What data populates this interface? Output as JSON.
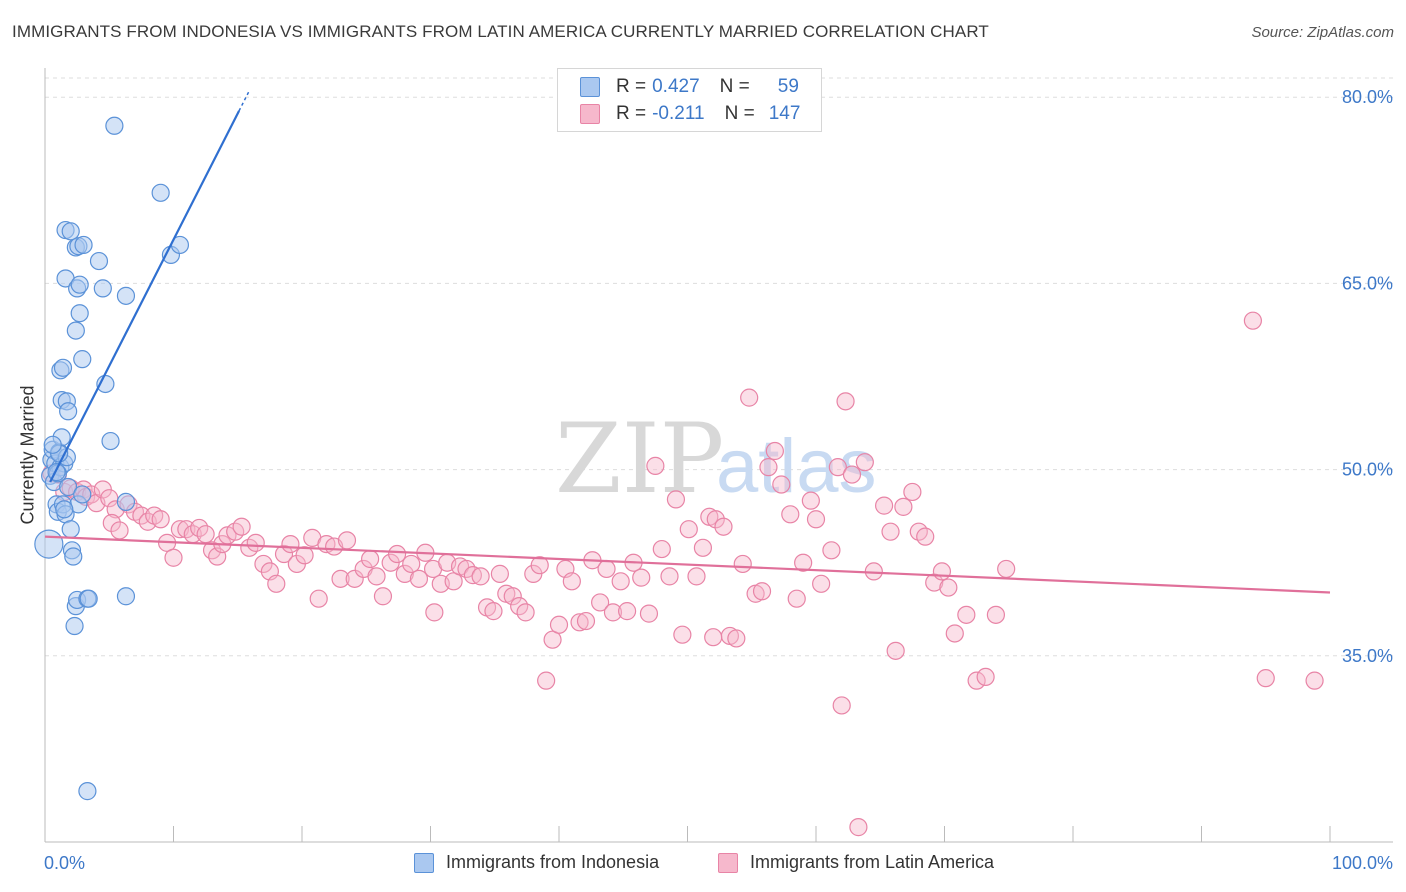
{
  "title": "IMMIGRANTS FROM INDONESIA VS IMMIGRANTS FROM LATIN AMERICA CURRENTLY MARRIED CORRELATION CHART",
  "source": "Source: ZipAtlas.com",
  "watermark": {
    "zip": "ZIP",
    "atlas": "atlas"
  },
  "legend": {
    "rows": [
      {
        "r_label": "R =",
        "r_value": "0.427",
        "n_label": "N =",
        "n_value": "59"
      },
      {
        "r_label": "R =",
        "r_value": "-0.211",
        "n_label": "N =",
        "n_value": "147"
      }
    ]
  },
  "bottom_legend": {
    "series1": "Immigrants from Indonesia",
    "series2": "Immigrants from Latin America"
  },
  "colors": {
    "indonesia_fill": "#aac8f0",
    "indonesia_stroke": "#5b92d8",
    "indonesia_line": "#2f6fd0",
    "latin_fill": "#f6b8cc",
    "latin_stroke": "#e884a6",
    "latin_line": "#e0709a",
    "tick_text": "#3d78c8",
    "grid": "#dddddd"
  },
  "chart_data": {
    "type": "scatter",
    "title": "IMMIGRANTS FROM INDONESIA VS IMMIGRANTS FROM LATIN AMERICA CURRENTLY MARRIED CORRELATION CHART",
    "xlabel": "",
    "ylabel": "Currently Married",
    "xlim": [
      0,
      100
    ],
    "ylim": [
      20,
      83
    ],
    "x_ticks": [
      "0.0%",
      "100.0%"
    ],
    "y_ticks": [
      {
        "value": 35,
        "label": "35.0%"
      },
      {
        "value": 50,
        "label": "50.0%"
      },
      {
        "value": 65,
        "label": "65.0%"
      },
      {
        "value": 80,
        "label": "80.0%"
      }
    ],
    "grid": true,
    "legend_position": "top-center",
    "series": [
      {
        "name": "Immigrants from Indonesia",
        "r": 0.427,
        "n": 59,
        "trend": {
          "x": [
            0.4,
            15.1
          ],
          "y": [
            49.0,
            78.9
          ]
        },
        "points": [
          [
            0.3,
            44.0
          ],
          [
            0.4,
            49.5
          ],
          [
            0.5,
            50.8
          ],
          [
            0.6,
            51.6
          ],
          [
            0.7,
            49.0
          ],
          [
            0.8,
            50.5
          ],
          [
            0.9,
            47.2
          ],
          [
            1.0,
            46.6
          ],
          [
            1.1,
            51.4
          ],
          [
            1.2,
            50.2
          ],
          [
            1.3,
            52.6
          ],
          [
            1.4,
            47.2
          ],
          [
            1.5,
            50.5
          ],
          [
            1.6,
            46.4
          ],
          [
            1.7,
            51.0
          ],
          [
            1.8,
            48.6
          ],
          [
            2.0,
            45.2
          ],
          [
            2.1,
            43.5
          ],
          [
            2.2,
            43.0
          ],
          [
            2.3,
            37.4
          ],
          [
            2.4,
            39.0
          ],
          [
            2.5,
            39.5
          ],
          [
            2.6,
            47.2
          ],
          [
            2.9,
            48.0
          ],
          [
            3.3,
            39.6
          ],
          [
            3.4,
            39.6
          ],
          [
            1.2,
            58.0
          ],
          [
            1.4,
            58.2
          ],
          [
            1.3,
            55.6
          ],
          [
            1.7,
            55.5
          ],
          [
            1.8,
            54.7
          ],
          [
            2.4,
            61.2
          ],
          [
            2.4,
            67.9
          ],
          [
            1.6,
            69.3
          ],
          [
            2.0,
            69.2
          ],
          [
            1.6,
            65.4
          ],
          [
            2.6,
            68.0
          ],
          [
            2.7,
            62.6
          ],
          [
            2.9,
            58.9
          ],
          [
            2.5,
            64.6
          ],
          [
            2.7,
            64.9
          ],
          [
            3.0,
            68.1
          ],
          [
            4.2,
            66.8
          ],
          [
            4.5,
            64.6
          ],
          [
            4.7,
            56.9
          ],
          [
            5.1,
            52.3
          ],
          [
            5.4,
            77.7
          ],
          [
            6.3,
            47.4
          ],
          [
            6.3,
            64.0
          ],
          [
            6.3,
            39.8
          ],
          [
            9.0,
            72.3
          ],
          [
            9.8,
            67.3
          ],
          [
            10.5,
            68.1
          ],
          [
            3.3,
            24.1
          ],
          [
            1.0,
            49.7
          ],
          [
            1.1,
            51.3
          ],
          [
            1.5,
            46.8
          ],
          [
            0.9,
            49.8
          ],
          [
            0.6,
            52.0
          ]
        ]
      },
      {
        "name": "Immigrants from Latin America",
        "r": -0.211,
        "n": 147,
        "trend": {
          "x": [
            0,
            100
          ],
          "y": [
            44.6,
            40.1
          ]
        },
        "points": [
          [
            0.5,
            49.7
          ],
          [
            1.0,
            49.6
          ],
          [
            1.5,
            48.2
          ],
          [
            2.0,
            48.5
          ],
          [
            2.5,
            48.2
          ],
          [
            3.0,
            48.4
          ],
          [
            3.2,
            47.8
          ],
          [
            3.6,
            48.0
          ],
          [
            4.0,
            47.3
          ],
          [
            4.5,
            48.4
          ],
          [
            5.0,
            47.7
          ],
          [
            5.5,
            46.8
          ],
          [
            5.2,
            45.7
          ],
          [
            5.8,
            45.1
          ],
          [
            6.5,
            47.2
          ],
          [
            7.0,
            46.6
          ],
          [
            7.5,
            46.3
          ],
          [
            8.0,
            45.8
          ],
          [
            8.5,
            46.3
          ],
          [
            9.0,
            46.0
          ],
          [
            9.5,
            44.1
          ],
          [
            10.0,
            42.9
          ],
          [
            10.5,
            45.2
          ],
          [
            11.0,
            45.2
          ],
          [
            11.5,
            44.8
          ],
          [
            12.0,
            45.3
          ],
          [
            12.5,
            44.8
          ],
          [
            13.0,
            43.5
          ],
          [
            13.4,
            43.0
          ],
          [
            13.8,
            44.0
          ],
          [
            14.2,
            44.7
          ],
          [
            14.8,
            45.0
          ],
          [
            15.3,
            45.4
          ],
          [
            15.9,
            43.7
          ],
          [
            16.4,
            44.1
          ],
          [
            17.0,
            42.4
          ],
          [
            17.5,
            41.8
          ],
          [
            18.0,
            40.8
          ],
          [
            18.6,
            43.2
          ],
          [
            19.1,
            44.0
          ],
          [
            19.6,
            42.4
          ],
          [
            20.2,
            43.1
          ],
          [
            20.8,
            44.5
          ],
          [
            21.3,
            39.6
          ],
          [
            21.9,
            44.0
          ],
          [
            22.5,
            43.8
          ],
          [
            23.0,
            41.2
          ],
          [
            23.5,
            44.3
          ],
          [
            24.1,
            41.2
          ],
          [
            24.8,
            42.0
          ],
          [
            25.3,
            42.8
          ],
          [
            25.8,
            41.4
          ],
          [
            26.3,
            39.8
          ],
          [
            26.9,
            42.5
          ],
          [
            27.4,
            43.2
          ],
          [
            28.0,
            41.6
          ],
          [
            28.5,
            42.4
          ],
          [
            29.1,
            41.2
          ],
          [
            29.6,
            43.3
          ],
          [
            30.2,
            42.0
          ],
          [
            30.8,
            40.8
          ],
          [
            31.3,
            42.5
          ],
          [
            31.8,
            41.0
          ],
          [
            32.3,
            42.2
          ],
          [
            32.8,
            42.0
          ],
          [
            33.3,
            41.5
          ],
          [
            33.9,
            41.4
          ],
          [
            34.4,
            38.9
          ],
          [
            34.9,
            38.6
          ],
          [
            35.4,
            41.6
          ],
          [
            35.9,
            40.0
          ],
          [
            36.4,
            39.8
          ],
          [
            36.9,
            39.0
          ],
          [
            37.4,
            38.5
          ],
          [
            38.0,
            41.6
          ],
          [
            38.5,
            42.3
          ],
          [
            39.0,
            33.0
          ],
          [
            39.5,
            36.3
          ],
          [
            40.0,
            37.5
          ],
          [
            40.5,
            42.0
          ],
          [
            41.0,
            41.0
          ],
          [
            41.6,
            37.7
          ],
          [
            42.1,
            37.8
          ],
          [
            42.6,
            42.7
          ],
          [
            43.2,
            39.3
          ],
          [
            43.7,
            42.0
          ],
          [
            44.2,
            38.5
          ],
          [
            44.8,
            41.0
          ],
          [
            45.3,
            38.6
          ],
          [
            45.8,
            42.5
          ],
          [
            46.4,
            41.3
          ],
          [
            47.0,
            38.4
          ],
          [
            47.5,
            50.3
          ],
          [
            48.0,
            43.6
          ],
          [
            48.6,
            41.4
          ],
          [
            49.1,
            47.6
          ],
          [
            49.6,
            36.7
          ],
          [
            50.1,
            45.2
          ],
          [
            50.7,
            41.4
          ],
          [
            51.2,
            43.7
          ],
          [
            51.7,
            46.2
          ],
          [
            52.2,
            46.0
          ],
          [
            52.8,
            45.4
          ],
          [
            53.3,
            36.6
          ],
          [
            53.8,
            36.4
          ],
          [
            54.3,
            42.4
          ],
          [
            54.8,
            55.8
          ],
          [
            55.3,
            40.0
          ],
          [
            55.8,
            40.2
          ],
          [
            56.3,
            50.2
          ],
          [
            56.8,
            51.5
          ],
          [
            57.3,
            48.8
          ],
          [
            58.0,
            46.4
          ],
          [
            58.5,
            39.6
          ],
          [
            59.0,
            42.5
          ],
          [
            59.6,
            47.5
          ],
          [
            60.0,
            46.0
          ],
          [
            60.4,
            40.8
          ],
          [
            61.2,
            43.5
          ],
          [
            61.7,
            50.2
          ],
          [
            62.3,
            55.5
          ],
          [
            62.8,
            49.6
          ],
          [
            63.8,
            50.6
          ],
          [
            64.5,
            41.8
          ],
          [
            65.3,
            47.1
          ],
          [
            65.8,
            45.0
          ],
          [
            66.2,
            35.4
          ],
          [
            66.8,
            47.0
          ],
          [
            67.5,
            48.2
          ],
          [
            68.0,
            45.0
          ],
          [
            68.5,
            44.6
          ],
          [
            69.2,
            40.9
          ],
          [
            69.8,
            41.8
          ],
          [
            70.3,
            40.5
          ],
          [
            70.8,
            36.8
          ],
          [
            71.7,
            38.3
          ],
          [
            72.5,
            33.0
          ],
          [
            73.2,
            33.3
          ],
          [
            74.0,
            38.3
          ],
          [
            74.8,
            42.0
          ],
          [
            62.0,
            31.0
          ],
          [
            63.3,
            21.2
          ],
          [
            94.0,
            62.0
          ],
          [
            95.0,
            33.2
          ],
          [
            98.8,
            33.0
          ],
          [
            30.3,
            38.5
          ],
          [
            52.0,
            36.5
          ]
        ]
      }
    ]
  }
}
